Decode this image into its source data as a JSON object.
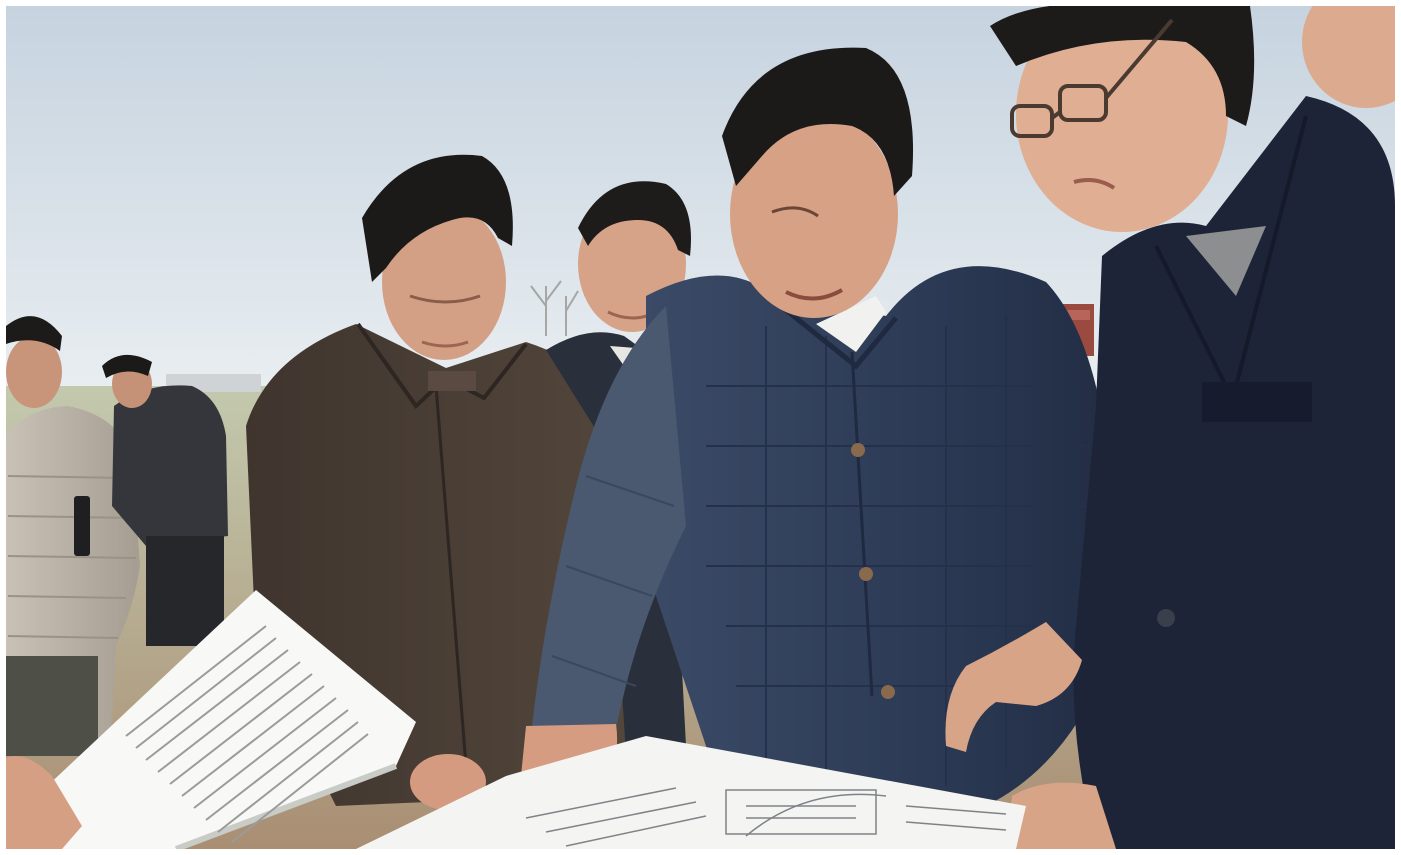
{
  "photo": {
    "description_free": true,
    "colors": {
      "sky_top": "#c9d6e2",
      "sky_bottom": "#e8edf0",
      "ground": "#b99c7c",
      "grass": "#b9c4a3",
      "navy_jacket": "#2f3d58",
      "brown_jacket": "#4a3e35",
      "charcoal_jacket": "#34363b",
      "beige_jacket": "#b9b2a6",
      "blazer": "#1d2438",
      "skin": "#d6a184",
      "hair": "#1c1a19",
      "paper": "#f4f4f2"
    }
  }
}
